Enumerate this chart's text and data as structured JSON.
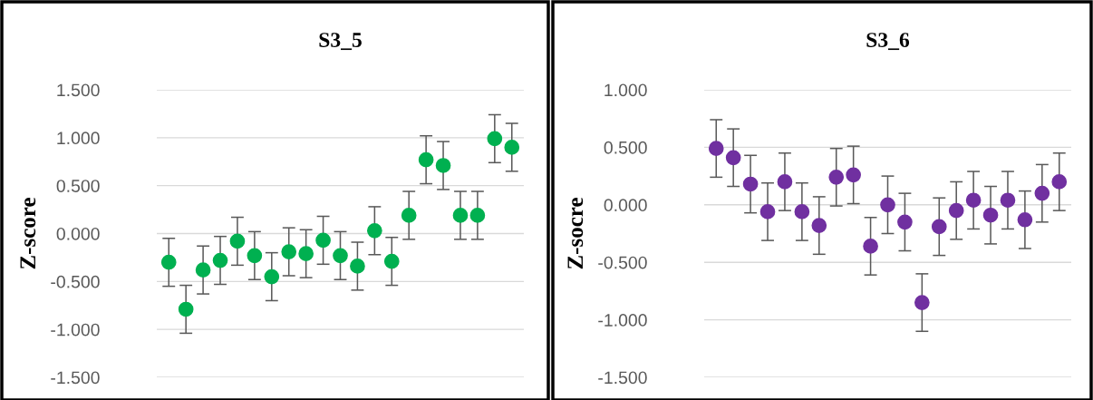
{
  "chart_data": [
    {
      "type": "scatter",
      "title": "S3_5",
      "ylabel": "Z-score",
      "categories": [
        null,
        null,
        null,
        null,
        null,
        null,
        null,
        null,
        null,
        null,
        null,
        null,
        null,
        null,
        null,
        null,
        null,
        null,
        null,
        null,
        null
      ],
      "series": [
        {
          "color": "#00b050",
          "values": [
            -0.3,
            -0.79,
            -0.38,
            -0.28,
            -0.08,
            -0.23,
            -0.45,
            -0.19,
            -0.21,
            -0.07,
            -0.23,
            -0.34,
            0.03,
            -0.29,
            0.19,
            0.77,
            0.71,
            0.19,
            0.19,
            0.99,
            0.9
          ],
          "errors": [
            0.25,
            0.25,
            0.25,
            0.25,
            0.25,
            0.25,
            0.25,
            0.25,
            0.25,
            0.25,
            0.25,
            0.25,
            0.25,
            0.25,
            0.25,
            0.25,
            0.25,
            0.25,
            0.25,
            0.25,
            0.25
          ]
        }
      ],
      "ylim": [
        -1.5,
        1.5
      ],
      "yticks": [
        {
          "value": -1.5,
          "label": "-1.500"
        },
        {
          "value": -1.0,
          "label": "-1.000"
        },
        {
          "value": -0.5,
          "label": "-0.500"
        },
        {
          "value": 0,
          "label": "0.000"
        },
        {
          "value": 0.5,
          "label": "0.500"
        },
        {
          "value": 1.0,
          "label": "1.000"
        },
        {
          "value": 1.5,
          "label": "1.500"
        }
      ],
      "grid": "y",
      "marker": "circle",
      "tick_labels": "y"
    },
    {
      "type": "scatter",
      "title": "S3_6",
      "ylabel": "Z-socre",
      "categories": [
        null,
        null,
        null,
        null,
        null,
        null,
        null,
        null,
        null,
        null,
        null,
        null,
        null,
        null,
        null,
        null,
        null,
        null,
        null,
        null,
        null
      ],
      "series": [
        {
          "color": "#7030a0",
          "values": [
            0.49,
            0.41,
            0.18,
            -0.06,
            0.2,
            -0.06,
            -0.18,
            0.24,
            0.26,
            -0.36,
            0.0,
            -0.15,
            -0.85,
            -0.19,
            -0.05,
            0.04,
            -0.09,
            0.04,
            -0.13,
            0.1,
            0.2
          ],
          "errors": [
            0.25,
            0.25,
            0.25,
            0.25,
            0.25,
            0.25,
            0.25,
            0.25,
            0.25,
            0.25,
            0.25,
            0.25,
            0.25,
            0.25,
            0.25,
            0.25,
            0.25,
            0.25,
            0.25,
            0.25,
            0.25
          ]
        }
      ],
      "ylim": [
        -1.5,
        1.0
      ],
      "yticks": [
        {
          "value": -1.5,
          "label": "-1.500"
        },
        {
          "value": -1.0,
          "label": "-1.000"
        },
        {
          "value": -0.5,
          "label": "-0.500"
        },
        {
          "value": 0,
          "label": "0.000"
        },
        {
          "value": 0.5,
          "label": "0.500"
        },
        {
          "value": 1.0,
          "label": "1.000"
        }
      ],
      "grid": "y",
      "marker": "circle",
      "tick_labels": "y"
    }
  ]
}
